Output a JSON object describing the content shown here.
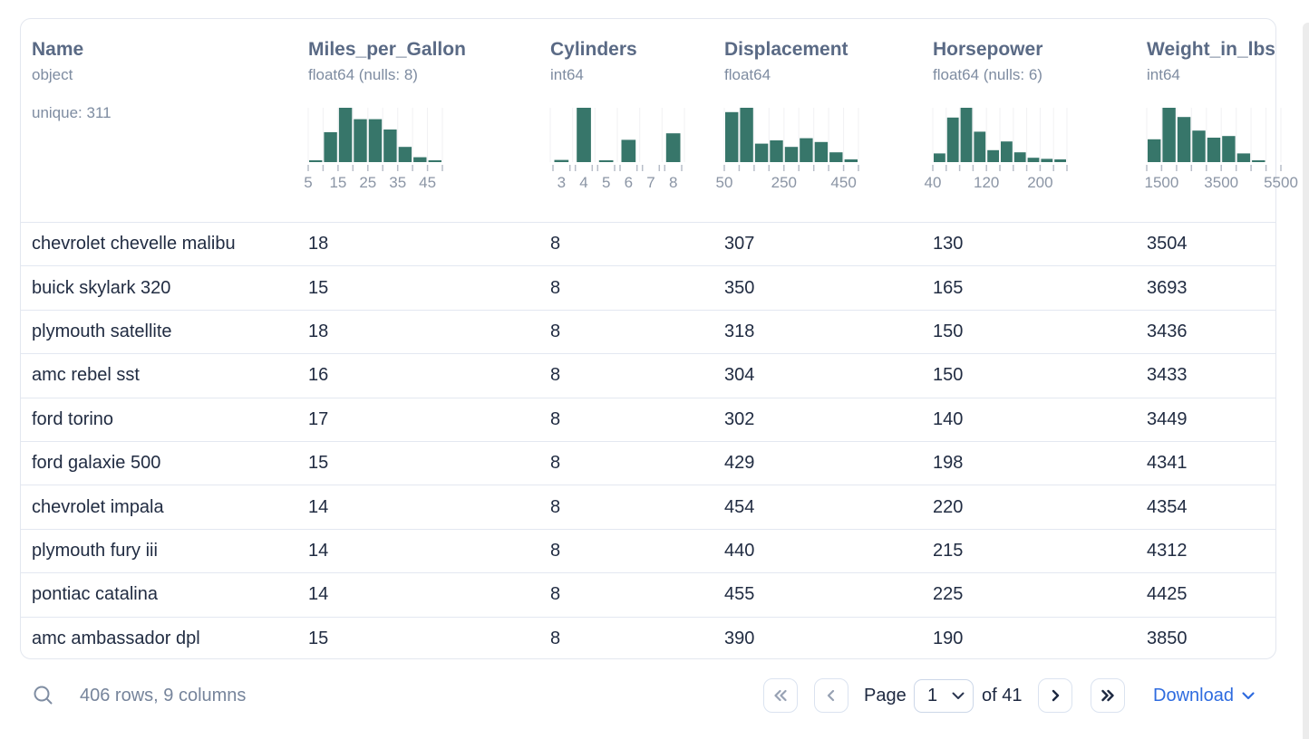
{
  "colors": {
    "bar_teal": "#37766a",
    "grid_line": "#f1f1f3",
    "tick": "#b7bdc8",
    "axis_label": "#8b95a5",
    "header_title": "#5a6a85",
    "header_type": "#7e8ca1",
    "row_text": "#212c42",
    "row_separator": "#e3e8f1",
    "card_border": "#e3e7ef",
    "muted_text": "#76849b",
    "enabled_icon": "#1d2840",
    "disabled_icon": "#97a1b3",
    "accent_blue": "#2e6bdf"
  },
  "icons": {
    "search-icon": "magnifier-outline",
    "first-page-icon": "chevron-double-left",
    "prev-page-icon": "chevron-left",
    "next-page-icon": "chevron-right",
    "last-page-icon": "chevron-double-right",
    "page-select-chevron-icon": "chevron-down",
    "download-chevron-icon": "chevron-down"
  },
  "table": {
    "columns": [
      {
        "name": "Name",
        "type": "object",
        "unique": "unique: 311"
      },
      {
        "name": "Miles_per_Gallon",
        "type": "float64 (nulls: 8)",
        "chart_data": {
          "type": "bar",
          "mode": "continuous",
          "bin_edges": [
            5,
            10,
            15,
            20,
            25,
            30,
            35,
            40,
            45,
            50
          ],
          "heights": [
            0.03,
            0.55,
            1.0,
            0.79,
            0.79,
            0.6,
            0.28,
            0.09,
            0.03
          ],
          "labels": [
            {
              "tick": 0,
              "text": "5"
            },
            {
              "tick": 2,
              "text": "15"
            },
            {
              "tick": 4,
              "text": "25"
            },
            {
              "tick": 6,
              "text": "35"
            },
            {
              "tick": 8,
              "text": "45"
            }
          ]
        }
      },
      {
        "name": "Cylinders",
        "type": "int64",
        "chart_data": {
          "type": "bar",
          "mode": "discrete",
          "bin_values": [
            3,
            4,
            5,
            6,
            7,
            8
          ],
          "heights": [
            0.04,
            1.0,
            0.03,
            0.41,
            0,
            0.53
          ],
          "labels": [
            {
              "bin": 0,
              "text": "3"
            },
            {
              "bin": 1,
              "text": "4"
            },
            {
              "bin": 2,
              "text": "5"
            },
            {
              "bin": 3,
              "text": "6"
            },
            {
              "bin": 4,
              "text": "7"
            },
            {
              "bin": 5,
              "text": "8"
            }
          ]
        }
      },
      {
        "name": "Displacement",
        "type": "float64",
        "chart_data": {
          "type": "bar",
          "mode": "continuous",
          "bin_edges": [
            50,
            100,
            150,
            200,
            250,
            300,
            350,
            400,
            450,
            500
          ],
          "heights": [
            0.92,
            1.0,
            0.34,
            0.4,
            0.28,
            0.44,
            0.37,
            0.18,
            0.05
          ],
          "labels": [
            {
              "tick": 0,
              "text": "50"
            },
            {
              "tick": 4,
              "text": "250"
            },
            {
              "tick": 8,
              "text": "450"
            }
          ]
        }
      },
      {
        "name": "Horsepower",
        "type": "float64 (nulls: 6)",
        "chart_data": {
          "type": "bar",
          "mode": "continuous",
          "bin_edges": [
            40,
            60,
            80,
            100,
            120,
            140,
            160,
            180,
            200,
            220,
            240
          ],
          "heights": [
            0.16,
            0.82,
            1.0,
            0.56,
            0.22,
            0.38,
            0.18,
            0.08,
            0.06,
            0.05
          ],
          "labels": [
            {
              "tick": 0,
              "text": "40"
            },
            {
              "tick": 4,
              "text": "120"
            },
            {
              "tick": 8,
              "text": "200"
            }
          ]
        }
      },
      {
        "name": "Weight_in_lbs",
        "type": "int64",
        "chart_data": {
          "type": "bar",
          "mode": "continuous",
          "bin_edges": [
            1000,
            1500,
            2000,
            2500,
            3000,
            3500,
            4000,
            4500,
            5000,
            5500
          ],
          "heights": [
            0.42,
            1.0,
            0.83,
            0.58,
            0.45,
            0.48,
            0.16,
            0.02,
            0
          ],
          "labels": [
            {
              "tick": 1,
              "text": "1500"
            },
            {
              "tick": 5,
              "text": "3500"
            },
            {
              "tick": 9,
              "text": "5500"
            }
          ]
        }
      }
    ],
    "rows": [
      [
        "chevrolet chevelle malibu",
        "18",
        "8",
        "307",
        "130",
        "3504"
      ],
      [
        "buick skylark 320",
        "15",
        "8",
        "350",
        "165",
        "3693"
      ],
      [
        "plymouth satellite",
        "18",
        "8",
        "318",
        "150",
        "3436"
      ],
      [
        "amc rebel sst",
        "16",
        "8",
        "304",
        "150",
        "3433"
      ],
      [
        "ford torino",
        "17",
        "8",
        "302",
        "140",
        "3449"
      ],
      [
        "ford galaxie 500",
        "15",
        "8",
        "429",
        "198",
        "4341"
      ],
      [
        "chevrolet impala",
        "14",
        "8",
        "454",
        "220",
        "4354"
      ],
      [
        "plymouth fury iii",
        "14",
        "8",
        "440",
        "215",
        "4312"
      ],
      [
        "pontiac catalina",
        "14",
        "8",
        "455",
        "225",
        "4425"
      ],
      [
        "amc ambassador dpl",
        "15",
        "8",
        "390",
        "190",
        "3850"
      ]
    ]
  },
  "footer": {
    "summary": "406 rows, 9 columns",
    "page_label": "Page",
    "page_value": "1",
    "of_label": "of 41",
    "download_label": "Download"
  }
}
